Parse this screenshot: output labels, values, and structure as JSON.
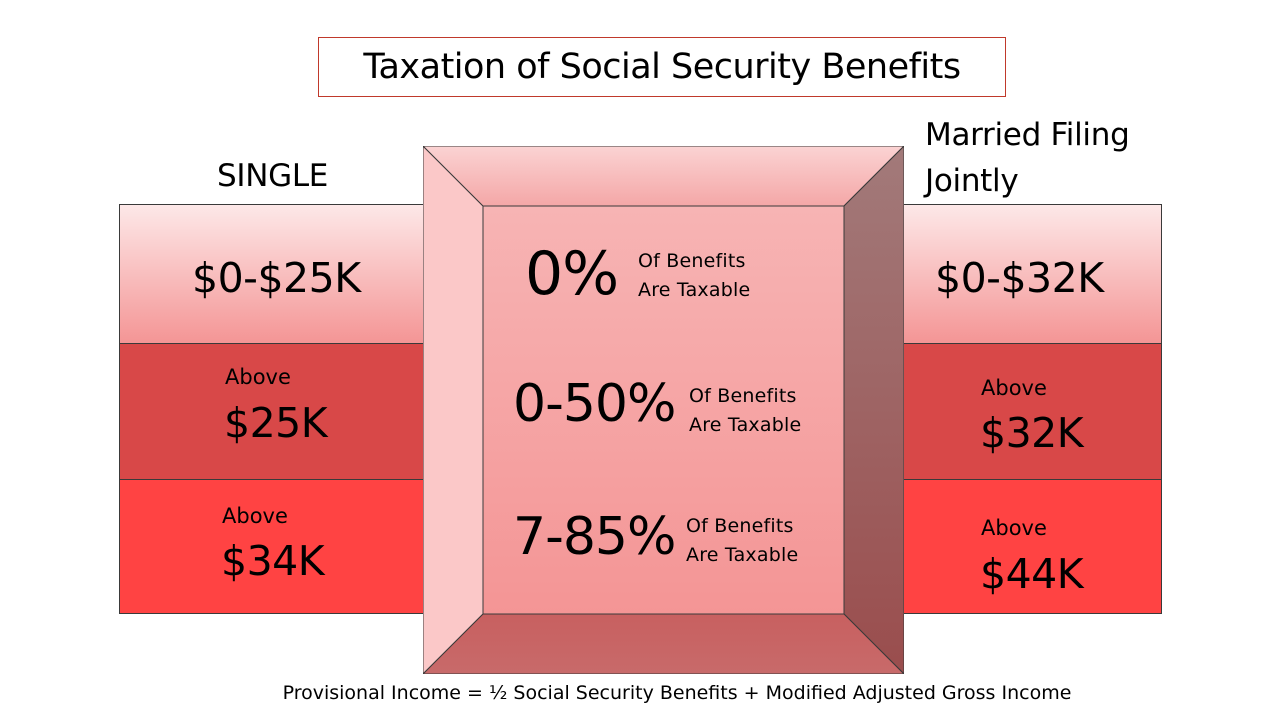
{
  "title": "Taxation of Social Security Benefits",
  "single": {
    "heading": "SINGLE",
    "tiers": [
      {
        "prefix": "",
        "amount": "$0-$25K"
      },
      {
        "prefix": "Above",
        "amount": "$25K"
      },
      {
        "prefix": "Above",
        "amount": "$34K"
      }
    ]
  },
  "joint": {
    "heading_line1": "Married Filing",
    "heading_line2": "Jointly",
    "tiers": [
      {
        "prefix": "",
        "amount": "$0-$32K"
      },
      {
        "prefix": "Above",
        "amount": "$32K"
      },
      {
        "prefix": "Above",
        "amount": "$44K"
      }
    ]
  },
  "center": {
    "rows": [
      {
        "percent": "0%",
        "line1": "Of Benefits",
        "line2": "Are Taxable"
      },
      {
        "percent": "0-50%",
        "line1": "Of Benefits",
        "line2": "Are Taxable"
      },
      {
        "percent": "7-85%",
        "line1": "Of Benefits",
        "line2": "Are Taxable"
      }
    ]
  },
  "footer": "Provisional Income = ½ Social Security Benefits + Modified Adjusted Gross Income",
  "colors": {
    "tier1": "#f8c4c4",
    "tier2": "#d84848",
    "tier3": "#ff4343",
    "title_border": "#c0392b",
    "bevel_center": "#f4a3a3"
  }
}
